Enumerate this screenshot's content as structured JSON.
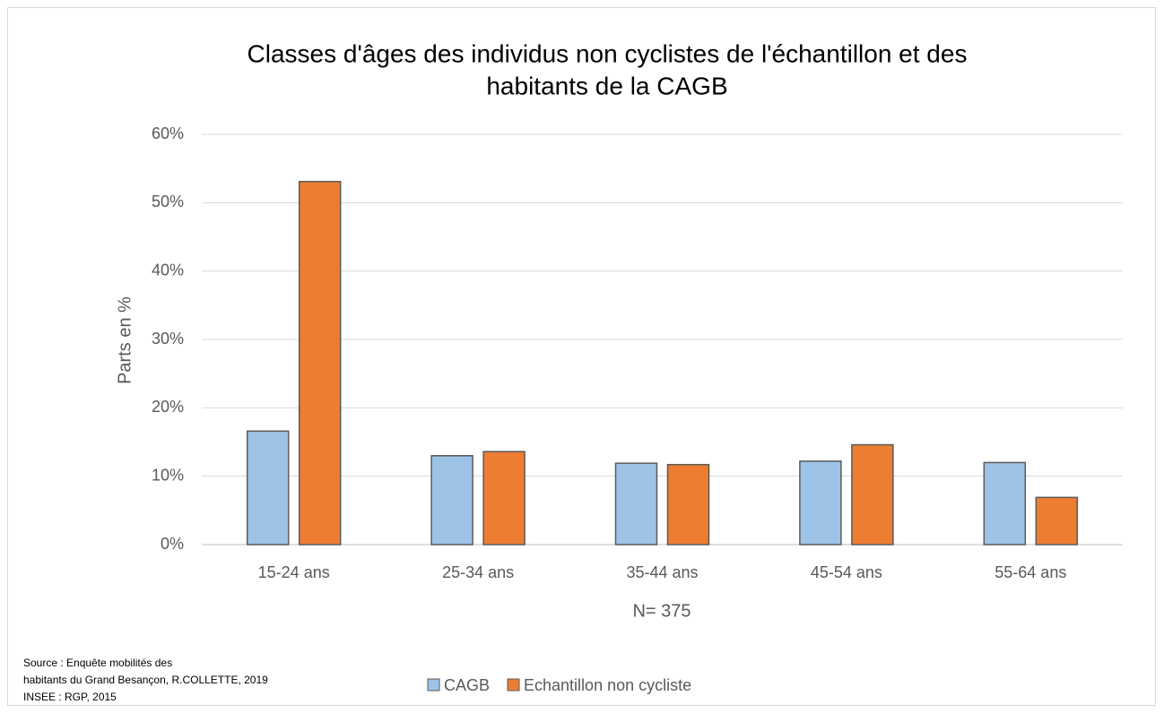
{
  "chart_data": {
    "type": "bar",
    "title": [
      "Classes d'âges des individus non cyclistes de l'échantillon et des",
      "habitants de la CAGB"
    ],
    "ylabel": "Parts en %",
    "xlabel": "N= 375",
    "source": [
      "Source : Enquête mobilités des",
      "habitants du Grand Besançon, R.COLLETTE, 2019",
      "INSEE : RGP, 2015"
    ],
    "categories": [
      "15-24 ans",
      "25-34 ans",
      "35-44 ans",
      "45-54 ans",
      "55-64 ans"
    ],
    "series": [
      {
        "name": "CAGB",
        "color": "#9dc3e6",
        "values": [
          16.6,
          13.0,
          11.9,
          12.2,
          12.0
        ]
      },
      {
        "name": "Echantillon non cycliste",
        "color": "#ed7d31",
        "values": [
          53.1,
          13.6,
          11.7,
          14.6,
          6.9
        ]
      }
    ],
    "ylim": [
      0,
      60
    ],
    "yticks": [
      {
        "value": 0,
        "label": "0%"
      },
      {
        "value": 10,
        "label": "10%"
      },
      {
        "value": 20,
        "label": "20%"
      },
      {
        "value": 30,
        "label": "30%"
      },
      {
        "value": 40,
        "label": "40%"
      },
      {
        "value": 50,
        "label": "50%"
      },
      {
        "value": 60,
        "label": "60%"
      }
    ],
    "grid": true,
    "legend": "bottom"
  }
}
